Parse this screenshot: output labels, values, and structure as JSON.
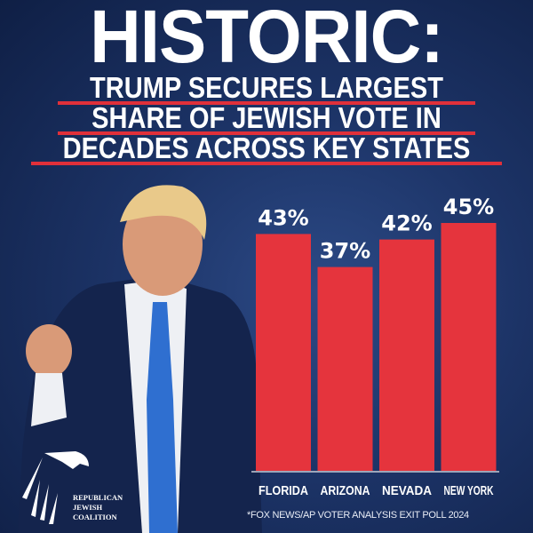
{
  "headline": "HISTORIC:",
  "subheadline": [
    "TRUMP SECURES LARGEST",
    "SHARE OF JEWISH VOTE IN",
    "DECADES ACROSS KEY STATES"
  ],
  "footnote": "*FOX NEWS/AP VOTER ANALYSIS EXIT POLL 2024",
  "logo": {
    "lines": [
      "REPUBLICAN",
      "JEWISH",
      "COALITION"
    ]
  },
  "colors": {
    "bar": "#e5343d",
    "background": "#1c3366",
    "underline": "#e0303a"
  },
  "chart_data": {
    "type": "bar",
    "categories": [
      "FLORIDA",
      "ARIZONA",
      "NEVADA",
      "NEW YORK"
    ],
    "values": [
      43,
      37,
      42,
      45
    ],
    "data_labels": [
      "43%",
      "37%",
      "42%",
      "45%"
    ],
    "ylim": [
      0,
      45
    ],
    "grid": false
  }
}
